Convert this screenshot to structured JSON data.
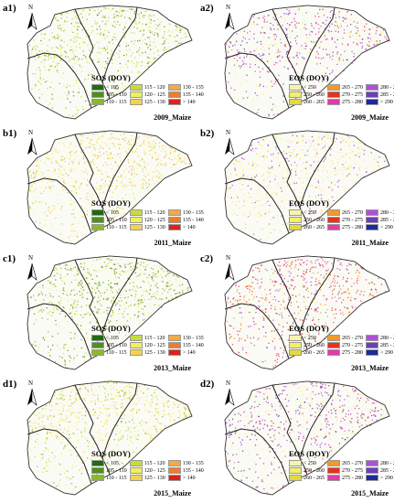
{
  "panels": [
    {
      "label": "a1)",
      "metric": "SOS",
      "year": "2009",
      "caption": "2009_Maize",
      "legend_title": "SOS (DOY)"
    },
    {
      "label": "a2)",
      "metric": "EOS",
      "year": "2009",
      "caption": "2009_Maize",
      "legend_title": "EOS (DOY)"
    },
    {
      "label": "b1)",
      "metric": "SOS",
      "year": "2011",
      "caption": "2011_Maize",
      "legend_title": "SOS (DOY)"
    },
    {
      "label": "b2)",
      "metric": "EOS",
      "year": "2011",
      "caption": "2011_Maize",
      "legend_title": "EOS (DOY)"
    },
    {
      "label": "c1)",
      "metric": "SOS",
      "year": "2013",
      "caption": "2013_Maize",
      "legend_title": "SOS (DOY)"
    },
    {
      "label": "c2)",
      "metric": "EOS",
      "year": "2013",
      "caption": "2013_Maize",
      "legend_title": "EOS (DOY)"
    },
    {
      "label": "d1)",
      "metric": "SOS",
      "year": "2015",
      "caption": "2015_Maize",
      "legend_title": "SOS (DOY)"
    },
    {
      "label": "d2)",
      "metric": "EOS",
      "year": "2015",
      "caption": "2015_Maize",
      "legend_title": "EOS (DOY)"
    }
  ],
  "north_label": "N",
  "legends": {
    "SOS": [
      {
        "label": "< 105",
        "color": "#1f6b12"
      },
      {
        "label": "105 - 110",
        "color": "#4f8f1e"
      },
      {
        "label": "110 - 115",
        "color": "#8db82c"
      },
      {
        "label": "115 - 120",
        "color": "#c7dc3a"
      },
      {
        "label": "120 - 125",
        "color": "#f0f05a"
      },
      {
        "label": "125 - 130",
        "color": "#f6d24b"
      },
      {
        "label": "130 - 135",
        "color": "#f2a94a"
      },
      {
        "label": "135 - 140",
        "color": "#ec7d2e"
      },
      {
        "label": "> 140",
        "color": "#e0201b"
      }
    ],
    "EOS": [
      {
        "label": "< 250",
        "color": "#f6f3b0"
      },
      {
        "label": "250 - 260",
        "color": "#f2f06a"
      },
      {
        "label": "260 - 265",
        "color": "#e4d940"
      },
      {
        "label": "265 - 270",
        "color": "#f29a2c"
      },
      {
        "label": "270 - 275",
        "color": "#e3331c"
      },
      {
        "label": "275 - 280",
        "color": "#e23aa8"
      },
      {
        "label": "280 - 285",
        "color": "#b24fd8"
      },
      {
        "label": "285 - 290",
        "color": "#6b3fb5"
      },
      {
        "label": "> 290",
        "color": "#1c2a9c"
      }
    ]
  },
  "dot_palettes": {
    "SOS_2009": [
      "#c7dc3a",
      "#8db82c",
      "#f0f05a",
      "#4f8f1e",
      "#c7dc3a"
    ],
    "SOS_2011": [
      "#f0f05a",
      "#f6d24b",
      "#c7dc3a",
      "#f2a94a",
      "#f0f05a"
    ],
    "SOS_2013": [
      "#8db82c",
      "#c7dc3a",
      "#4f8f1e",
      "#f0f05a",
      "#8db82c"
    ],
    "SOS_2015": [
      "#c7dc3a",
      "#f0f05a",
      "#f6d24b",
      "#8db82c",
      "#f0f05a"
    ],
    "EOS_2009": [
      "#b24fd8",
      "#f6f3b0",
      "#e23aa8",
      "#6b3fb5",
      "#f2f06a"
    ],
    "EOS_2011": [
      "#f6f3b0",
      "#f2f06a",
      "#e4d940",
      "#b24fd8",
      "#f6f3b0"
    ],
    "EOS_2013": [
      "#e3331c",
      "#f29a2c",
      "#b24fd8",
      "#f6f3b0",
      "#e23aa8"
    ],
    "EOS_2015": [
      "#e23aa8",
      "#f6f3b0",
      "#b24fd8",
      "#f2f06a",
      "#6b3fb5"
    ]
  }
}
